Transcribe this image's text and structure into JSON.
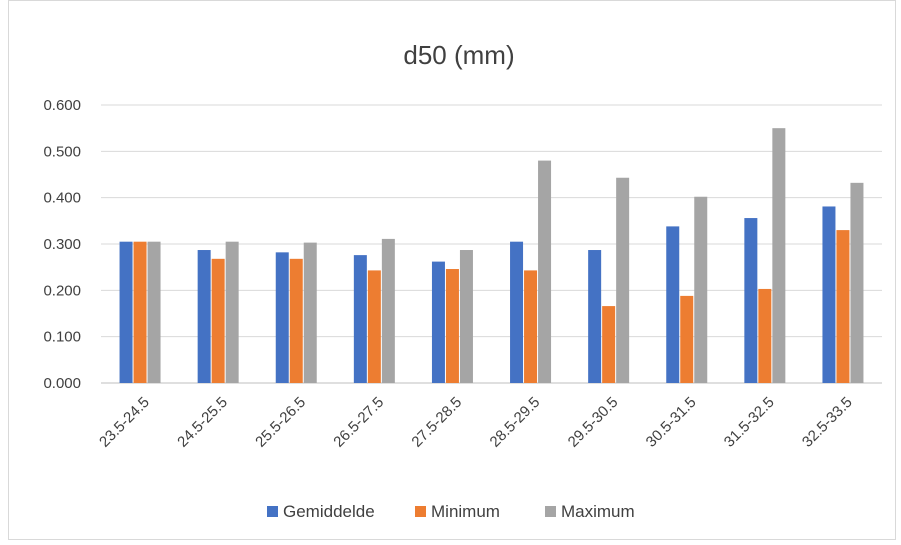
{
  "chart_data": {
    "type": "bar",
    "title": "d50 (mm)",
    "xlabel": "",
    "ylabel": "",
    "ylim": [
      0,
      0.6
    ],
    "yticks": [
      "0.000",
      "0.100",
      "0.200",
      "0.300",
      "0.400",
      "0.500",
      "0.600"
    ],
    "grid": true,
    "legend_position": "bottom",
    "categories": [
      "23.5-24.5",
      "24.5-25.5",
      "25.5-26.5",
      "26.5-27.5",
      "27.5-28.5",
      "28.5-29.5",
      "29.5-30.5",
      "30.5-31.5",
      "31.5-32.5",
      "32.5-33.5"
    ],
    "series": [
      {
        "name": "Gemiddelde",
        "color": "#4472c4",
        "values": [
          0.305,
          0.287,
          0.282,
          0.276,
          0.262,
          0.305,
          0.287,
          0.338,
          0.356,
          0.381
        ]
      },
      {
        "name": "Minimum",
        "color": "#ed7d31",
        "values": [
          0.305,
          0.268,
          0.268,
          0.243,
          0.246,
          0.243,
          0.166,
          0.188,
          0.203,
          0.33
        ]
      },
      {
        "name": "Maximum",
        "color": "#a5a5a5",
        "values": [
          0.305,
          0.305,
          0.303,
          0.311,
          0.287,
          0.48,
          0.443,
          0.402,
          0.55,
          0.432
        ]
      }
    ]
  }
}
